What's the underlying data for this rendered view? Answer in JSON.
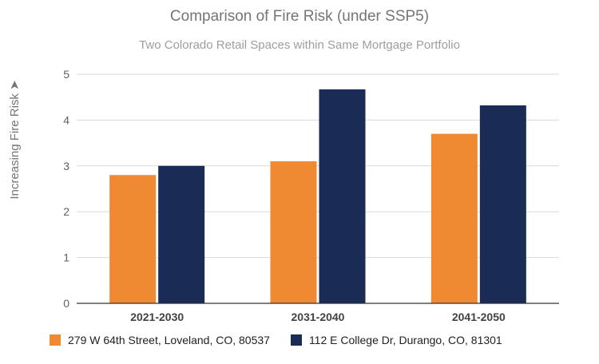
{
  "chart_data": {
    "type": "bar",
    "title": "Comparison of Fire Risk (under SSP5)",
    "subtitle": "Two Colorado Retail Spaces within Same Mortgage Portfolio",
    "xlabel": "",
    "ylabel": "Increasing Fire Risk ➤",
    "ylim": [
      0,
      5
    ],
    "yticks": [
      "0",
      "1",
      "2",
      "3",
      "4",
      "5"
    ],
    "grid": true,
    "legend_position": "bottom",
    "categories": [
      "2021-2030",
      "2031-2040",
      "2041-2050"
    ],
    "series": [
      {
        "name": "279 W 64th Street, Loveland, CO, 80537",
        "color": "#ef8a32",
        "values": [
          2.8,
          3.1,
          3.7
        ]
      },
      {
        "name": "112 E College Dr, Durango, CO, 81301",
        "color": "#1a2b56",
        "values": [
          3.0,
          4.67,
          4.32
        ]
      }
    ]
  }
}
